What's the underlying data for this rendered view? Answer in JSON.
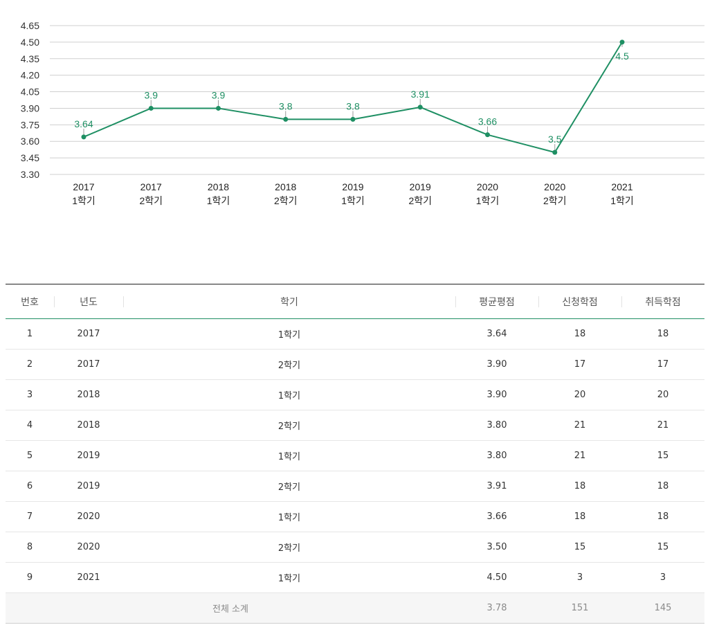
{
  "chart_data": {
    "type": "line",
    "categories": [
      [
        "2017",
        "1학기"
      ],
      [
        "2017",
        "2학기"
      ],
      [
        "2018",
        "1학기"
      ],
      [
        "2018",
        "2학기"
      ],
      [
        "2019",
        "1학기"
      ],
      [
        "2019",
        "2학기"
      ],
      [
        "2020",
        "1학기"
      ],
      [
        "2020",
        "2학기"
      ],
      [
        "2021",
        "1학기"
      ]
    ],
    "values": [
      3.64,
      3.9,
      3.9,
      3.8,
      3.8,
      3.91,
      3.66,
      3.5,
      4.5
    ],
    "data_labels": [
      "3.64",
      "3.9",
      "3.9",
      "3.8",
      "3.8",
      "3.91",
      "3.66",
      "3.5",
      "4.5"
    ],
    "yticks": [
      "4.65",
      "4.50",
      "4.35",
      "4.20",
      "4.05",
      "3.90",
      "3.75",
      "3.60",
      "3.45",
      "3.30"
    ],
    "ylim": [
      3.3,
      4.65
    ],
    "grid": true,
    "line_color": "#1e8f63",
    "grid_color": "#cfcfcf"
  },
  "table": {
    "headers": {
      "no": "번호",
      "year": "년도",
      "semester": "학기",
      "gpa": "평균평점",
      "applied": "신청학점",
      "earned": "취득학점"
    },
    "rows": [
      {
        "no": "1",
        "year": "2017",
        "semester": "1학기",
        "gpa": "3.64",
        "applied": "18",
        "earned": "18"
      },
      {
        "no": "2",
        "year": "2017",
        "semester": "2학기",
        "gpa": "3.90",
        "applied": "17",
        "earned": "17"
      },
      {
        "no": "3",
        "year": "2018",
        "semester": "1학기",
        "gpa": "3.90",
        "applied": "20",
        "earned": "20"
      },
      {
        "no": "4",
        "year": "2018",
        "semester": "2학기",
        "gpa": "3.80",
        "applied": "21",
        "earned": "21"
      },
      {
        "no": "5",
        "year": "2019",
        "semester": "1학기",
        "gpa": "3.80",
        "applied": "21",
        "earned": "15"
      },
      {
        "no": "6",
        "year": "2019",
        "semester": "2학기",
        "gpa": "3.91",
        "applied": "18",
        "earned": "18"
      },
      {
        "no": "7",
        "year": "2020",
        "semester": "1학기",
        "gpa": "3.66",
        "applied": "18",
        "earned": "18"
      },
      {
        "no": "8",
        "year": "2020",
        "semester": "2학기",
        "gpa": "3.50",
        "applied": "15",
        "earned": "15"
      },
      {
        "no": "9",
        "year": "2021",
        "semester": "1학기",
        "gpa": "4.50",
        "applied": "3",
        "earned": "3"
      }
    ],
    "total": {
      "label": "전체 소계",
      "gpa": "3.78",
      "applied": "151",
      "earned": "145"
    }
  }
}
